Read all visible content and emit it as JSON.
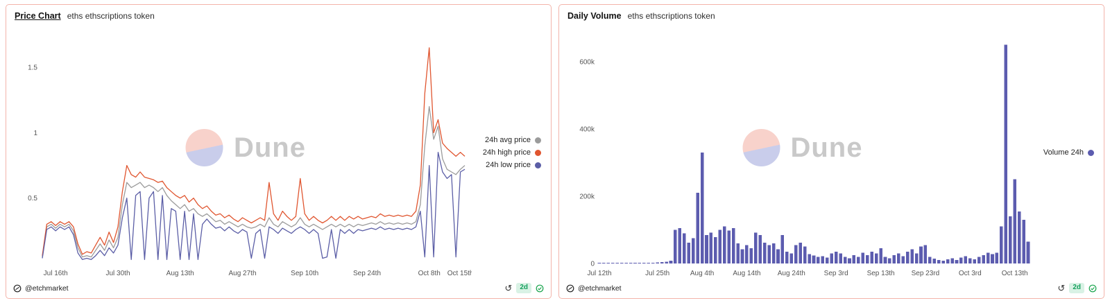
{
  "watermark": "Dune",
  "panels": [
    {
      "title": "Price Chart",
      "subtitle": "eths ethscriptions token",
      "footer": {
        "author": "@etchmarket",
        "author_icon": "etchmarket-logo",
        "refresh_icon": "refresh-arrow",
        "freshness": "2d",
        "status_icon": "check-circle"
      }
    },
    {
      "title": "Daily Volume",
      "subtitle": "eths ethscriptions token",
      "footer": {
        "author": "@etchmarket",
        "author_icon": "etchmarket-logo",
        "refresh_icon": "refresh-arrow",
        "freshness": "2d",
        "status_icon": "check-circle"
      }
    }
  ],
  "colors": {
    "panel_border": "#f3b4aa",
    "badge_bg": "#d9f2e5",
    "badge_text": "#13a05c",
    "check_green": "#16a34a",
    "watermark_text": "#c9c9c9",
    "watermark_pink": "#f8d2cb",
    "watermark_lavender": "#c9cdeb"
  },
  "chart_data": [
    {
      "type": "line",
      "title": "Price Chart",
      "subtitle": "eths ethscriptions token",
      "grid": false,
      "legend_position": "right",
      "x_range": [
        "Jul 13",
        "Oct 16"
      ],
      "ylim": [
        0,
        1.75
      ],
      "yticks": [
        {
          "value": 0.5,
          "label": "0.5"
        },
        {
          "value": 1,
          "label": "1"
        },
        {
          "value": 1.5,
          "label": "1.5"
        }
      ],
      "xticks": [
        {
          "index": 3,
          "label": "Jul 16th"
        },
        {
          "index": 17,
          "label": "Jul 30th"
        },
        {
          "index": 31,
          "label": "Aug 13th"
        },
        {
          "index": 45,
          "label": "Aug 27th"
        },
        {
          "index": 59,
          "label": "Sep 10th"
        },
        {
          "index": 73,
          "label": "Sep 24th"
        },
        {
          "index": 87,
          "label": "Oct 8th"
        },
        {
          "index": 94,
          "label": "Oct 15th"
        }
      ],
      "series": [
        {
          "name": "24h avg price",
          "color": "#9b9b9b",
          "values": [
            0.05,
            0.28,
            0.3,
            0.27,
            0.3,
            0.28,
            0.3,
            0.25,
            0.12,
            0.05,
            0.06,
            0.05,
            0.1,
            0.15,
            0.1,
            0.18,
            0.12,
            0.2,
            0.45,
            0.62,
            0.58,
            0.6,
            0.62,
            0.58,
            0.6,
            0.58,
            0.55,
            0.58,
            0.52,
            0.48,
            0.45,
            0.42,
            0.45,
            0.4,
            0.42,
            0.38,
            0.36,
            0.38,
            0.35,
            0.32,
            0.33,
            0.3,
            0.32,
            0.3,
            0.28,
            0.3,
            0.28,
            0.27,
            0.28,
            0.3,
            0.28,
            0.35,
            0.3,
            0.28,
            0.32,
            0.3,
            0.28,
            0.3,
            0.35,
            0.3,
            0.28,
            0.3,
            0.28,
            0.26,
            0.28,
            0.3,
            0.28,
            0.3,
            0.28,
            0.3,
            0.28,
            0.3,
            0.29,
            0.3,
            0.31,
            0.3,
            0.32,
            0.3,
            0.31,
            0.3,
            0.31,
            0.3,
            0.31,
            0.3,
            0.32,
            0.45,
            0.9,
            1.2,
            0.95,
            1.05,
            0.8,
            0.72,
            0.7,
            0.68,
            0.72,
            0.75
          ]
        },
        {
          "name": "24h high price",
          "color": "#e0552f",
          "values": [
            0.06,
            0.3,
            0.32,
            0.29,
            0.32,
            0.3,
            0.32,
            0.28,
            0.15,
            0.07,
            0.09,
            0.08,
            0.14,
            0.2,
            0.14,
            0.24,
            0.16,
            0.28,
            0.55,
            0.75,
            0.68,
            0.66,
            0.7,
            0.66,
            0.65,
            0.64,
            0.62,
            0.63,
            0.58,
            0.55,
            0.52,
            0.5,
            0.52,
            0.47,
            0.5,
            0.45,
            0.42,
            0.44,
            0.4,
            0.37,
            0.38,
            0.35,
            0.37,
            0.34,
            0.32,
            0.35,
            0.33,
            0.31,
            0.33,
            0.35,
            0.33,
            0.62,
            0.38,
            0.33,
            0.4,
            0.36,
            0.33,
            0.36,
            0.65,
            0.38,
            0.33,
            0.36,
            0.33,
            0.31,
            0.33,
            0.36,
            0.33,
            0.36,
            0.33,
            0.36,
            0.34,
            0.36,
            0.34,
            0.35,
            0.36,
            0.35,
            0.38,
            0.36,
            0.37,
            0.36,
            0.37,
            0.36,
            0.37,
            0.36,
            0.4,
            0.6,
            1.3,
            1.65,
            1.0,
            1.1,
            0.92,
            0.88,
            0.85,
            0.82,
            0.85,
            0.82
          ]
        },
        {
          "name": "24h low price",
          "color": "#5b5ea6",
          "values": [
            0.04,
            0.26,
            0.28,
            0.25,
            0.28,
            0.26,
            0.28,
            0.22,
            0.08,
            0.03,
            0.04,
            0.03,
            0.06,
            0.1,
            0.06,
            0.12,
            0.08,
            0.14,
            0.35,
            0.5,
            0.03,
            0.52,
            0.55,
            0.03,
            0.5,
            0.55,
            0.03,
            0.52,
            0.03,
            0.42,
            0.4,
            0.03,
            0.4,
            0.03,
            0.38,
            0.03,
            0.3,
            0.34,
            0.3,
            0.27,
            0.28,
            0.25,
            0.28,
            0.25,
            0.23,
            0.26,
            0.24,
            0.04,
            0.23,
            0.26,
            0.04,
            0.28,
            0.26,
            0.23,
            0.27,
            0.25,
            0.23,
            0.26,
            0.28,
            0.26,
            0.23,
            0.26,
            0.23,
            0.04,
            0.05,
            0.26,
            0.04,
            0.26,
            0.23,
            0.26,
            0.23,
            0.26,
            0.25,
            0.26,
            0.27,
            0.26,
            0.28,
            0.26,
            0.27,
            0.26,
            0.27,
            0.26,
            0.27,
            0.26,
            0.28,
            0.4,
            0.05,
            0.75,
            0.05,
            0.85,
            0.7,
            0.65,
            0.68,
            0.05,
            0.7,
            0.72
          ]
        }
      ]
    },
    {
      "type": "bar",
      "title": "Daily Volume",
      "subtitle": "eths ethscriptions token",
      "grid": false,
      "legend_position": "right",
      "unit": "thousands",
      "x_range": [
        "Jul 12",
        "Oct 16"
      ],
      "ylim": [
        0,
        680
      ],
      "yticks": [
        {
          "value": 0,
          "label": "0"
        },
        {
          "value": 200,
          "label": "200k"
        },
        {
          "value": 400,
          "label": "400k"
        },
        {
          "value": 600,
          "label": "600k"
        }
      ],
      "xticks": [
        {
          "index": 0,
          "label": "Jul 12th"
        },
        {
          "index": 13,
          "label": "Jul 25th"
        },
        {
          "index": 23,
          "label": "Aug 4th"
        },
        {
          "index": 33,
          "label": "Aug 14th"
        },
        {
          "index": 43,
          "label": "Aug 24th"
        },
        {
          "index": 53,
          "label": "Sep 3rd"
        },
        {
          "index": 63,
          "label": "Sep 13th"
        },
        {
          "index": 73,
          "label": "Sep 23rd"
        },
        {
          "index": 83,
          "label": "Oct 3rd"
        },
        {
          "index": 93,
          "label": "Oct 13th"
        }
      ],
      "series": [
        {
          "name": "Volume 24h",
          "color": "#5c5caf",
          "values": [
            1,
            1,
            1,
            1,
            1,
            1,
            1,
            1,
            1,
            1,
            2,
            2,
            2,
            3,
            4,
            5,
            8,
            100,
            105,
            90,
            62,
            75,
            210,
            330,
            85,
            92,
            78,
            100,
            110,
            98,
            105,
            60,
            42,
            55,
            45,
            92,
            85,
            62,
            55,
            60,
            42,
            85,
            35,
            30,
            55,
            62,
            50,
            28,
            24,
            20,
            22,
            18,
            30,
            35,
            30,
            20,
            15,
            25,
            20,
            32,
            25,
            35,
            30,
            45,
            20,
            15,
            25,
            30,
            22,
            35,
            42,
            30,
            50,
            55,
            20,
            14,
            10,
            8,
            12,
            15,
            10,
            18,
            22,
            15,
            12,
            20,
            25,
            32,
            28,
            32,
            110,
            650,
            140,
            250,
            155,
            130,
            65
          ]
        }
      ]
    }
  ]
}
